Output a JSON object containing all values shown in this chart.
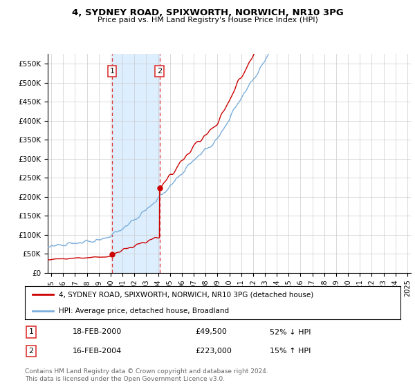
{
  "title": "4, SYDNEY ROAD, SPIXWORTH, NORWICH, NR10 3PG",
  "subtitle": "Price paid vs. HM Land Registry's House Price Index (HPI)",
  "ylabel_ticks": [
    "£0",
    "£50K",
    "£100K",
    "£150K",
    "£200K",
    "£250K",
    "£300K",
    "£350K",
    "£400K",
    "£450K",
    "£500K",
    "£550K"
  ],
  "ytick_values": [
    0,
    50000,
    100000,
    150000,
    200000,
    250000,
    300000,
    350000,
    400000,
    450000,
    500000,
    550000
  ],
  "ylim": [
    0,
    575000
  ],
  "xlim_start": 1994.7,
  "xlim_end": 2025.3,
  "sale1_date": 2000.12,
  "sale1_price": 49500,
  "sale2_date": 2004.12,
  "sale2_price": 223000,
  "sale1_text": "18-FEB-2000",
  "sale1_amount": "£49,500",
  "sale1_hpi": "52% ↓ HPI",
  "sale2_text": "16-FEB-2004",
  "sale2_amount": "£223,000",
  "sale2_hpi": "15% ↑ HPI",
  "property_label": "4, SYDNEY ROAD, SPIXWORTH, NORWICH, NR10 3PG (detached house)",
  "hpi_label": "HPI: Average price, detached house, Broadland",
  "property_color": "#cc0000",
  "hpi_color": "#7aaedb",
  "vline_color": "#dd3333",
  "shade_color": "#ddeeff",
  "footer": "Contains HM Land Registry data © Crown copyright and database right 2024.\nThis data is licensed under the Open Government Licence v3.0.",
  "xtick_years": [
    1995,
    1996,
    1997,
    1998,
    1999,
    2000,
    2001,
    2002,
    2003,
    2004,
    2005,
    2006,
    2007,
    2008,
    2009,
    2010,
    2011,
    2012,
    2013,
    2014,
    2015,
    2016,
    2017,
    2018,
    2019,
    2020,
    2021,
    2022,
    2023,
    2024,
    2025
  ],
  "bg_color": "#ffffff",
  "grid_color": "#cccccc"
}
